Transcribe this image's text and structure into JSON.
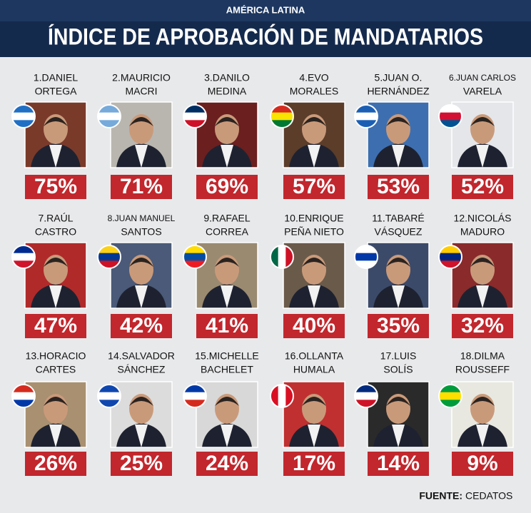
{
  "header": {
    "kicker": "AMÉRICA LATINA",
    "title": "ÍNDICE DE APROBACIÓN DE MANDATARIOS"
  },
  "leaders": [
    {
      "name_lines": [
        "1.DANIEL",
        "ORTEGA"
      ],
      "approval": "75%"
    },
    {
      "name_lines": [
        "2.MAURICIO",
        "MACRI"
      ],
      "approval": "71%"
    },
    {
      "name_lines": [
        "3.DANILO",
        "MEDINA"
      ],
      "approval": "69%"
    },
    {
      "name_lines": [
        "4.EVO",
        "MORALES"
      ],
      "approval": "57%"
    },
    {
      "name_lines": [
        "5.JUAN O.",
        "HERNÁNDEZ"
      ],
      "approval": "53%"
    },
    {
      "name_lines": [
        "6.JUAN CARLOS",
        "VARELA"
      ],
      "approval": "52%"
    },
    {
      "name_lines": [
        "7.RAÚL",
        "CASTRO"
      ],
      "approval": "47%"
    },
    {
      "name_lines": [
        "8.JUAN MANUEL",
        "SANTOS"
      ],
      "approval": "42%"
    },
    {
      "name_lines": [
        "9.RAFAEL",
        "CORREA"
      ],
      "approval": "41%"
    },
    {
      "name_lines": [
        "10.ENRIQUE",
        "PEÑA NIETO"
      ],
      "approval": "40%"
    },
    {
      "name_lines": [
        "11.TABARÉ",
        "VÁSQUEZ"
      ],
      "approval": "35%"
    },
    {
      "name_lines": [
        "12.NICOLÁS",
        "MADURO"
      ],
      "approval": "32%"
    },
    {
      "name_lines": [
        "13.HORACIO",
        "CARTES"
      ],
      "approval": "26%"
    },
    {
      "name_lines": [
        "14.SALVADOR",
        "SÁNCHEZ"
      ],
      "approval": "25%"
    },
    {
      "name_lines": [
        "15.MICHELLE",
        "BACHELET"
      ],
      "approval": "24%"
    },
    {
      "name_lines": [
        "16.OLLANTA",
        "HUMALA"
      ],
      "approval": "17%"
    },
    {
      "name_lines": [
        "17.LUIS",
        "SOLÍS"
      ],
      "approval": "14%"
    },
    {
      "name_lines": [
        "18.DILMA",
        "ROUSSEFF"
      ],
      "approval": "9%"
    }
  ],
  "source": {
    "label": "FUENTE:",
    "name": "CEDATOS"
  }
}
